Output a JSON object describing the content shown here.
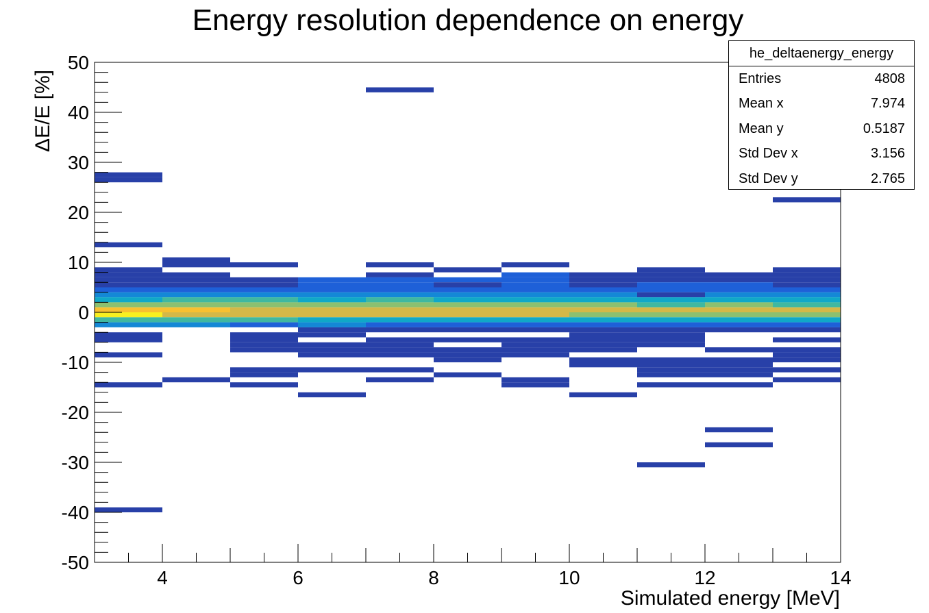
{
  "chart_data": {
    "type": "heatmap",
    "title": "Energy resolution dependence on energy",
    "xlabel": "Simulated energy [MeV]",
    "ylabel": "ΔE/E [%]",
    "xlim": [
      3,
      14
    ],
    "ylim": [
      -50,
      50
    ],
    "x_ticks": [
      "4",
      "6",
      "8",
      "10",
      "12",
      "14"
    ],
    "y_ticks": [
      "50",
      "40",
      "30",
      "20",
      "10",
      "0",
      "-10",
      "-20",
      "-30",
      "-40",
      "-50"
    ],
    "x_bin_width": 1,
    "y_bin_width": 1,
    "colormap": [
      "#2840a8",
      "#1e60d8",
      "#1488d6",
      "#10a8c8",
      "#40b8a0",
      "#8cc070",
      "#d4b848",
      "#f8c030",
      "#f8f020"
    ],
    "bins": [
      {
        "x": 3,
        "cells": [
          [
            27,
            0
          ],
          [
            26,
            0
          ],
          [
            13,
            0
          ],
          [
            8,
            0
          ],
          [
            7,
            0
          ],
          [
            6,
            0
          ],
          [
            5,
            0
          ],
          [
            4,
            1
          ],
          [
            3,
            2
          ],
          [
            2,
            3
          ],
          [
            1,
            5
          ],
          [
            0,
            7
          ],
          [
            -1,
            8
          ],
          [
            -2,
            4
          ],
          [
            -3,
            2
          ],
          [
            -5,
            0
          ],
          [
            -6,
            0
          ],
          [
            -9,
            0
          ],
          [
            -15,
            0
          ],
          [
            -40,
            0
          ]
        ]
      },
      {
        "x": 4,
        "cells": [
          [
            10,
            0
          ],
          [
            9,
            0
          ],
          [
            7,
            0
          ],
          [
            6,
            0
          ],
          [
            5,
            0
          ],
          [
            4,
            1
          ],
          [
            3,
            2
          ],
          [
            2,
            4
          ],
          [
            1,
            5
          ],
          [
            0,
            7
          ],
          [
            -1,
            6
          ],
          [
            -2,
            4
          ],
          [
            -3,
            2
          ],
          [
            -14,
            0
          ]
        ]
      },
      {
        "x": 5,
        "cells": [
          [
            9,
            0
          ],
          [
            6,
            0
          ],
          [
            5,
            0
          ],
          [
            4,
            1
          ],
          [
            3,
            2
          ],
          [
            2,
            4
          ],
          [
            1,
            5
          ],
          [
            0,
            6
          ],
          [
            -1,
            6
          ],
          [
            -2,
            4
          ],
          [
            -3,
            1
          ],
          [
            -5,
            0
          ],
          [
            -6,
            0
          ],
          [
            -7,
            0
          ],
          [
            -8,
            0
          ],
          [
            -12,
            0
          ],
          [
            -13,
            0
          ],
          [
            -15,
            0
          ]
        ]
      },
      {
        "x": 6,
        "cells": [
          [
            6,
            1
          ],
          [
            5,
            1
          ],
          [
            4,
            1
          ],
          [
            3,
            2
          ],
          [
            2,
            3
          ],
          [
            1,
            5
          ],
          [
            0,
            6
          ],
          [
            -1,
            6
          ],
          [
            -2,
            3
          ],
          [
            -3,
            2
          ],
          [
            -4,
            0
          ],
          [
            -5,
            0
          ],
          [
            -7,
            0
          ],
          [
            -8,
            0
          ],
          [
            -9,
            0
          ],
          [
            -12,
            0
          ],
          [
            -17,
            0
          ]
        ]
      },
      {
        "x": 7,
        "cells": [
          [
            9,
            0
          ],
          [
            7,
            0
          ],
          [
            6,
            1
          ],
          [
            5,
            1
          ],
          [
            4,
            1
          ],
          [
            3,
            2
          ],
          [
            2,
            4
          ],
          [
            1,
            5
          ],
          [
            0,
            6
          ],
          [
            -1,
            6
          ],
          [
            -2,
            3
          ],
          [
            -3,
            1
          ],
          [
            -4,
            0
          ],
          [
            -6,
            0
          ],
          [
            -7,
            0
          ],
          [
            -8,
            0
          ],
          [
            -9,
            0
          ],
          [
            -12,
            0
          ],
          [
            -14,
            0
          ],
          [
            44,
            0
          ]
        ]
      },
      {
        "x": 8,
        "cells": [
          [
            8,
            0
          ],
          [
            6,
            1
          ],
          [
            5,
            0
          ],
          [
            4,
            1
          ],
          [
            3,
            2
          ],
          [
            2,
            3
          ],
          [
            1,
            5
          ],
          [
            0,
            6
          ],
          [
            -1,
            6
          ],
          [
            -2,
            3
          ],
          [
            -3,
            1
          ],
          [
            -4,
            0
          ],
          [
            -6,
            0
          ],
          [
            -8,
            0
          ],
          [
            -9,
            0
          ],
          [
            -10,
            0
          ],
          [
            -13,
            0
          ]
        ]
      },
      {
        "x": 9,
        "cells": [
          [
            9,
            0
          ],
          [
            7,
            1
          ],
          [
            6,
            1
          ],
          [
            5,
            1
          ],
          [
            4,
            1
          ],
          [
            3,
            2
          ],
          [
            2,
            3
          ],
          [
            1,
            5
          ],
          [
            0,
            6
          ],
          [
            -1,
            6
          ],
          [
            -2,
            3
          ],
          [
            -3,
            1
          ],
          [
            -4,
            0
          ],
          [
            -6,
            0
          ],
          [
            -7,
            0
          ],
          [
            -8,
            0
          ],
          [
            -9,
            0
          ],
          [
            -14,
            0
          ],
          [
            -15,
            0
          ]
        ]
      },
      {
        "x": 10,
        "cells": [
          [
            7,
            0
          ],
          [
            6,
            0
          ],
          [
            5,
            0
          ],
          [
            4,
            1
          ],
          [
            3,
            2
          ],
          [
            2,
            3
          ],
          [
            1,
            5
          ],
          [
            0,
            6
          ],
          [
            -1,
            5
          ],
          [
            -2,
            3
          ],
          [
            -3,
            1
          ],
          [
            -4,
            0
          ],
          [
            -5,
            0
          ],
          [
            -6,
            0
          ],
          [
            -7,
            0
          ],
          [
            -8,
            0
          ],
          [
            -10,
            0
          ],
          [
            -11,
            0
          ],
          [
            -17,
            0
          ]
        ]
      },
      {
        "x": 11,
        "cells": [
          [
            8,
            0
          ],
          [
            7,
            0
          ],
          [
            6,
            0
          ],
          [
            5,
            1
          ],
          [
            4,
            1
          ],
          [
            3,
            0
          ],
          [
            2,
            3
          ],
          [
            1,
            4
          ],
          [
            0,
            6
          ],
          [
            -1,
            5
          ],
          [
            -2,
            3
          ],
          [
            -3,
            1
          ],
          [
            -4,
            0
          ],
          [
            -5,
            0
          ],
          [
            -6,
            0
          ],
          [
            -7,
            0
          ],
          [
            -10,
            0
          ],
          [
            -11,
            0
          ],
          [
            -12,
            0
          ],
          [
            -13,
            0
          ],
          [
            -15,
            0
          ],
          [
            -31,
            0
          ]
        ]
      },
      {
        "x": 12,
        "cells": [
          [
            7,
            0
          ],
          [
            6,
            0
          ],
          [
            5,
            1
          ],
          [
            4,
            1
          ],
          [
            3,
            2
          ],
          [
            2,
            3
          ],
          [
            1,
            5
          ],
          [
            0,
            6
          ],
          [
            -1,
            5
          ],
          [
            -2,
            3
          ],
          [
            -3,
            1
          ],
          [
            -4,
            0
          ],
          [
            -8,
            0
          ],
          [
            -10,
            0
          ],
          [
            -11,
            0
          ],
          [
            -12,
            0
          ],
          [
            -13,
            0
          ],
          [
            -15,
            0
          ],
          [
            -24,
            0
          ],
          [
            -27,
            0
          ]
        ]
      },
      {
        "x": 13,
        "cells": [
          [
            22,
            0
          ],
          [
            8,
            0
          ],
          [
            7,
            0
          ],
          [
            6,
            0
          ],
          [
            5,
            0
          ],
          [
            4,
            1
          ],
          [
            3,
            2
          ],
          [
            2,
            3
          ],
          [
            1,
            4
          ],
          [
            0,
            6
          ],
          [
            -1,
            5
          ],
          [
            -2,
            3
          ],
          [
            -3,
            1
          ],
          [
            -4,
            0
          ],
          [
            -6,
            0
          ],
          [
            -8,
            0
          ],
          [
            -9,
            0
          ],
          [
            -10,
            0
          ],
          [
            -12,
            0
          ],
          [
            -14,
            0
          ]
        ]
      }
    ]
  },
  "stats_box": {
    "name": "he_deltaenergy_energy",
    "rows": [
      {
        "label": "Entries",
        "value": "4808"
      },
      {
        "label": "Mean x",
        "value": "7.974"
      },
      {
        "label": "Mean y",
        "value": "0.5187"
      },
      {
        "label": "Std Dev x",
        "value": "3.156"
      },
      {
        "label": "Std Dev y",
        "value": "2.765"
      }
    ]
  }
}
